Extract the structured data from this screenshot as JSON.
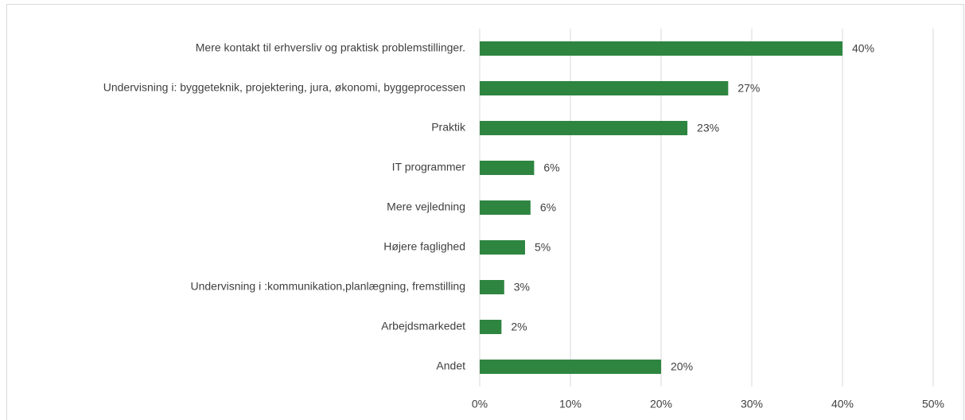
{
  "chart_data": {
    "type": "bar",
    "orientation": "horizontal",
    "categories": [
      "Mere kontakt til erhversliv og praktisk problemstillinger.",
      "Undervisning i: byggeteknik, projektering, jura, økonomi, byggeprocessen",
      "Praktik",
      "IT programmer",
      "Mere vejledning",
      "Højere faglighed",
      "Undervisning i :kommunikation,planlægning, fremstilling",
      "Arbejdsmarkedet",
      "Andet"
    ],
    "values": [
      40,
      27.4,
      22.9,
      6,
      5.6,
      5,
      2.7,
      2.4,
      20
    ],
    "value_labels": [
      "40%",
      "27%",
      "23%",
      "6%",
      "6%",
      "5%",
      "3%",
      "2%",
      "20%"
    ],
    "color": "#2e8540",
    "xlim": [
      0,
      50
    ],
    "xticks": [
      {
        "value": 0,
        "label": "0%"
      },
      {
        "value": 10,
        "label": "10%"
      },
      {
        "value": 20,
        "label": "20%"
      },
      {
        "value": 30,
        "label": "30%"
      },
      {
        "value": 40,
        "label": "40%"
      },
      {
        "value": 50,
        "label": "50%"
      }
    ],
    "grid": true
  }
}
